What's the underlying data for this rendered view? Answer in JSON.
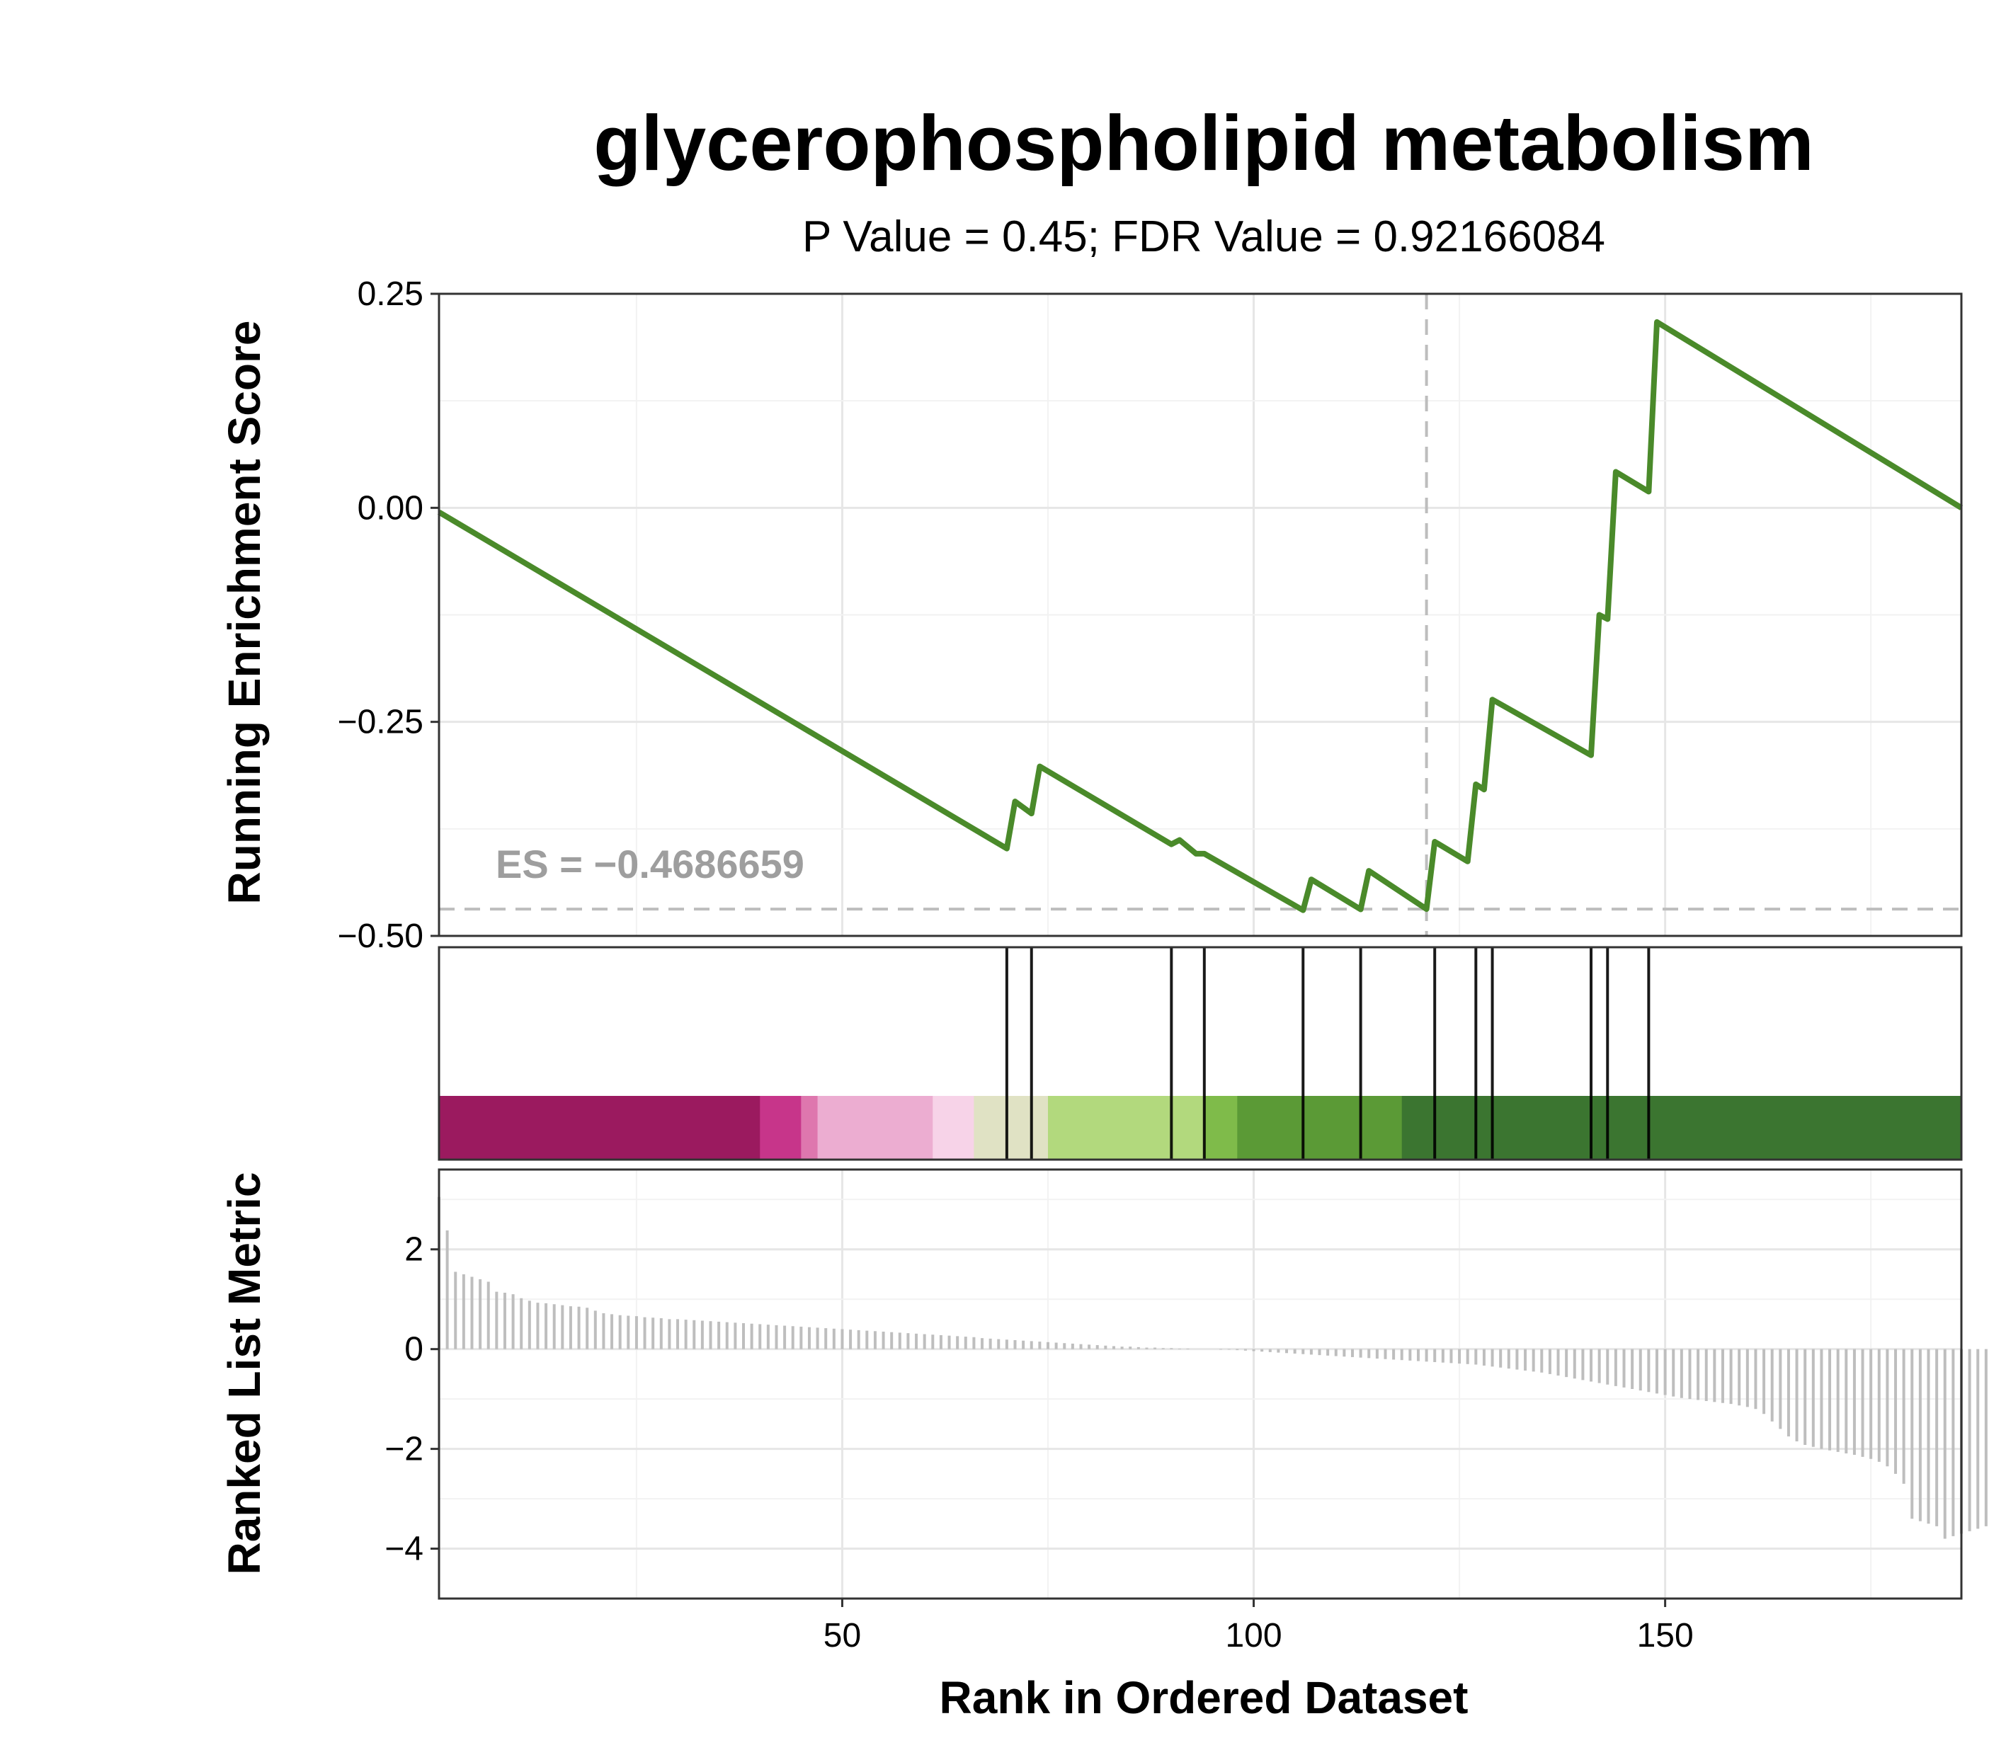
{
  "chart_data": {
    "type": "line",
    "title": "glycerophospholipid metabolism",
    "subtitle": "P Value = 0.45; FDR Value = 0.92166084",
    "es_label": "ES = −0.4686659",
    "es_value": -0.4687,
    "peak_rank": 121,
    "xlabel": "Rank in Ordered Dataset",
    "xlim": [
      1,
      186
    ],
    "x_ticks": [
      50,
      100,
      150
    ],
    "x_tick_labels": [
      "50",
      "100",
      "150"
    ],
    "grid": true,
    "line_color": "#4a8a2a",
    "running_es": {
      "ylabel": "Running Enrichment Score",
      "ylim": [
        -0.5,
        0.25
      ],
      "y_ticks": [
        0.25,
        0.0,
        -0.25,
        -0.5
      ],
      "y_tick_labels": [
        "0.25",
        "0.00",
        "−0.25",
        "−0.50"
      ],
      "x": [
        1,
        70,
        71,
        73,
        74,
        90,
        91,
        93,
        94,
        106,
        107,
        113,
        114,
        121,
        122,
        126,
        127,
        128,
        129,
        141,
        142,
        143,
        144,
        148,
        149,
        186
      ],
      "y": [
        -0.005,
        -0.398,
        -0.343,
        -0.357,
        -0.302,
        -0.393,
        -0.388,
        -0.404,
        -0.404,
        -0.47,
        -0.434,
        -0.469,
        -0.424,
        -0.4687,
        -0.39,
        -0.413,
        -0.323,
        -0.329,
        -0.224,
        -0.289,
        -0.125,
        -0.13,
        0.042,
        0.019,
        0.217,
        0.0
      ]
    },
    "gene_hits": [
      70,
      73,
      90,
      94,
      106,
      113,
      122,
      127,
      129,
      141,
      143,
      148
    ],
    "rank_color_bands": [
      {
        "from": 1,
        "to": 40,
        "color": "#9b1a5f"
      },
      {
        "from": 40,
        "to": 45,
        "color": "#c7358a"
      },
      {
        "from": 45,
        "to": 47,
        "color": "#de77ae"
      },
      {
        "from": 47,
        "to": 61,
        "color": "#ecadd1"
      },
      {
        "from": 61,
        "to": 66,
        "color": "#f7d3e8"
      },
      {
        "from": 66,
        "to": 75,
        "color": "#e0e2c4"
      },
      {
        "from": 75,
        "to": 94,
        "color": "#b2d97d"
      },
      {
        "from": 94,
        "to": 98,
        "color": "#7fbb4a"
      },
      {
        "from": 98,
        "to": 118,
        "color": "#5b9a36"
      },
      {
        "from": 118,
        "to": 186,
        "color": "#3b7530"
      }
    ],
    "ranked_metric": {
      "ylabel": "Ranked List Metric",
      "ylim": [
        -5,
        3.6
      ],
      "y_ticks": [
        2,
        0,
        -2,
        -4
      ],
      "y_tick_labels": [
        "2",
        "0",
        "−2",
        "−4"
      ],
      "bar_color": "#bebebe",
      "values": [
        3.05,
        2.38,
        1.55,
        1.5,
        1.45,
        1.4,
        1.35,
        1.15,
        1.13,
        1.1,
        1.02,
        0.97,
        0.93,
        0.92,
        0.9,
        0.88,
        0.86,
        0.85,
        0.83,
        0.77,
        0.72,
        0.7,
        0.68,
        0.67,
        0.66,
        0.64,
        0.63,
        0.62,
        0.6,
        0.6,
        0.59,
        0.58,
        0.57,
        0.56,
        0.55,
        0.54,
        0.53,
        0.52,
        0.51,
        0.5,
        0.49,
        0.48,
        0.47,
        0.46,
        0.45,
        0.44,
        0.43,
        0.42,
        0.41,
        0.4,
        0.39,
        0.38,
        0.37,
        0.36,
        0.35,
        0.34,
        0.33,
        0.32,
        0.31,
        0.3,
        0.29,
        0.28,
        0.27,
        0.26,
        0.25,
        0.24,
        0.22,
        0.21,
        0.2,
        0.19,
        0.18,
        0.17,
        0.16,
        0.15,
        0.14,
        0.13,
        0.12,
        0.11,
        0.1,
        0.09,
        0.08,
        0.07,
        0.06,
        0.05,
        0.05,
        0.04,
        0.03,
        0.03,
        0.02,
        0.02,
        0.01,
        0.01,
        0.0,
        0.0,
        0.0,
        -0.01,
        -0.01,
        -0.02,
        -0.03,
        -0.04,
        -0.05,
        -0.06,
        -0.07,
        -0.08,
        -0.09,
        -0.1,
        -0.11,
        -0.12,
        -0.13,
        -0.14,
        -0.15,
        -0.16,
        -0.17,
        -0.18,
        -0.19,
        -0.2,
        -0.21,
        -0.22,
        -0.23,
        -0.24,
        -0.25,
        -0.26,
        -0.27,
        -0.28,
        -0.29,
        -0.3,
        -0.31,
        -0.33,
        -0.35,
        -0.37,
        -0.39,
        -0.41,
        -0.43,
        -0.45,
        -0.47,
        -0.5,
        -0.53,
        -0.56,
        -0.59,
        -0.62,
        -0.65,
        -0.68,
        -0.71,
        -0.74,
        -0.77,
        -0.8,
        -0.83,
        -0.86,
        -0.89,
        -0.92,
        -0.95,
        -0.98,
        -1.0,
        -1.02,
        -1.04,
        -1.06,
        -1.08,
        -1.1,
        -1.13,
        -1.16,
        -1.2,
        -1.3,
        -1.45,
        -1.6,
        -1.75,
        -1.85,
        -1.92,
        -1.96,
        -2.0,
        -2.03,
        -2.06,
        -2.09,
        -2.12,
        -2.16,
        -2.2,
        -2.26,
        -2.35,
        -2.5,
        -2.7,
        -3.4,
        -3.45,
        -3.5,
        -3.55,
        -3.8,
        -3.75,
        -3.7,
        -3.65,
        -3.6,
        -3.55
      ]
    }
  }
}
